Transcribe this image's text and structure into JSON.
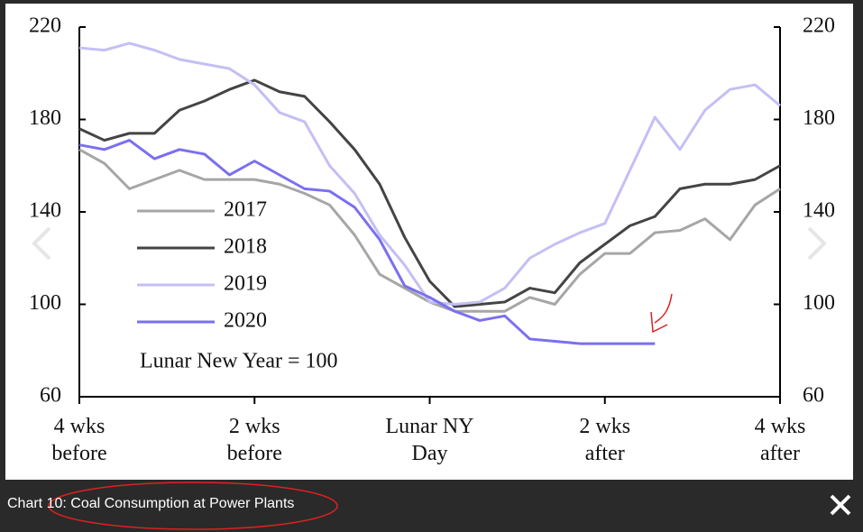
{
  "chart_data": {
    "type": "line",
    "x": [
      -28,
      -26,
      -24,
      -22,
      -20,
      -18,
      -16,
      -14,
      -12,
      -10,
      -8,
      -6,
      -4,
      -2,
      0,
      2,
      4,
      6,
      8,
      10,
      12,
      14,
      16,
      18,
      20,
      22,
      24,
      26,
      28
    ],
    "series": [
      {
        "name": "2017",
        "color": "#a6a6a6",
        "values": [
          167,
          161,
          150,
          154,
          158,
          154,
          154,
          154,
          152,
          148,
          143,
          130,
          113,
          107,
          101,
          97,
          97,
          97,
          103,
          100,
          113,
          122,
          122,
          131,
          132,
          137,
          128,
          143,
          150
        ]
      },
      {
        "name": "2018",
        "color": "#444444",
        "values": [
          176,
          171,
          174,
          174,
          184,
          188,
          193,
          197,
          192,
          190,
          179,
          167,
          152,
          129,
          110,
          99,
          100,
          101,
          107,
          105,
          118,
          126,
          134,
          138,
          150,
          152,
          152,
          154,
          160
        ]
      },
      {
        "name": "2019",
        "color": "#c4bff5",
        "values": [
          211,
          210,
          213,
          210,
          206,
          204,
          202,
          195,
          183,
          179,
          160,
          148,
          130,
          117,
          101,
          100,
          101,
          107,
          120,
          126,
          131,
          135,
          158,
          181,
          167,
          184,
          193,
          195,
          186
        ]
      },
      {
        "name": "2020",
        "color": "#7b6ff0",
        "values": [
          169,
          167,
          171,
          163,
          167,
          165,
          156,
          162,
          156,
          150,
          149,
          142,
          128,
          108,
          103,
          97,
          93,
          95,
          85,
          84,
          83,
          83,
          83,
          83,
          null,
          null,
          null,
          null,
          null
        ]
      }
    ],
    "annotation": "Lunar New Year = 100",
    "xlim": [
      -28,
      28
    ],
    "xticks": [
      {
        "value": -28,
        "label": "4 wks before"
      },
      {
        "value": -14,
        "label": "2 wks before"
      },
      {
        "value": 0,
        "label": "Lunar NY Day"
      },
      {
        "value": 14,
        "label": "2 wks after"
      },
      {
        "value": 28,
        "label": "4 wks after"
      }
    ],
    "ylim": [
      60,
      220
    ],
    "yticks": [
      60,
      100,
      140,
      180,
      220
    ],
    "y2lim": [
      60,
      220
    ],
    "y2ticks": [
      60,
      100,
      140,
      180,
      220
    ]
  },
  "caption": "Chart 10: Coal Consumption at Power Plants"
}
